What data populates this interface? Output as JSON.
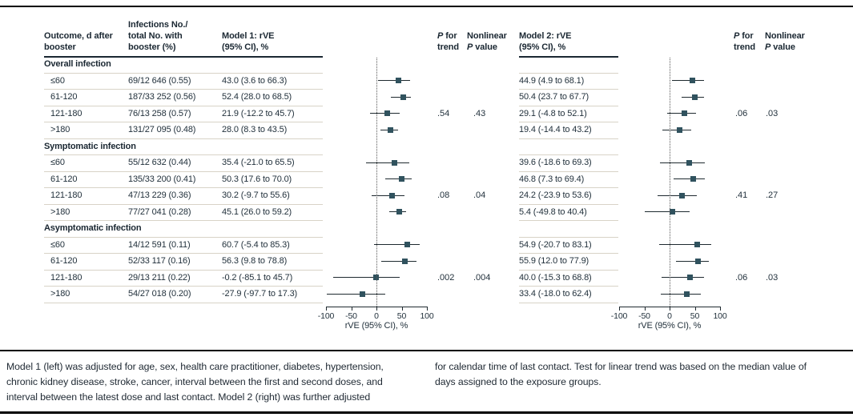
{
  "figure": {
    "header": {
      "col_outcome": [
        "Outcome, d after",
        "booster"
      ],
      "col_infections": [
        "Infections No./",
        "total No. with",
        "booster (%)"
      ],
      "col_model1": [
        "Model 1: rVE",
        "(95% CI), %"
      ],
      "col_model2": [
        "Model 2: rVE",
        "(95% CI), %"
      ],
      "p_trend": {
        "italic": "P",
        "rest": " for",
        "line2": "trend"
      },
      "nonlinear": {
        "line1": "Nonlinear",
        "italic": "P",
        "rest": " value"
      }
    },
    "axis": {
      "label": "rVE (95% CI), %",
      "min": -100,
      "max": 100,
      "ticks": [
        {
          "v": -100,
          "label": "-100"
        },
        {
          "v": -50,
          "label": "-50"
        },
        {
          "v": 0,
          "label": "0"
        },
        {
          "v": 50,
          "label": "50"
        },
        {
          "v": 100,
          "label": "100"
        }
      ]
    },
    "groups": [
      {
        "label": "Overall infection",
        "p1_trend": ".54",
        "p1_nonlinear": ".43",
        "p2_trend": ".06",
        "p2_nonlinear": ".03",
        "rows": [
          {
            "outcome": "≤60",
            "infections": "69/12 646 (0.55)",
            "m1_text": "43.0 (3.6 to 66.3)",
            "m1": [
              43.0,
              3.6,
              66.3
            ],
            "m2_text": "44.9 (4.9 to 68.1)",
            "m2": [
              44.9,
              4.9,
              68.1
            ]
          },
          {
            "outcome": "61-120",
            "infections": "187/33 252 (0.56)",
            "m1_text": "52.4 (28.0 to 68.5)",
            "m1": [
              52.4,
              28.0,
              68.5
            ],
            "m2_text": "50.4 (23.7 to 67.7)",
            "m2": [
              50.4,
              23.7,
              67.7
            ]
          },
          {
            "outcome": "121-180",
            "infections": "76/13 258 (0.57)",
            "m1_text": "21.9 (-12.2 to 45.7)",
            "m1": [
              21.9,
              -12.2,
              45.7
            ],
            "m2_text": "29.1 (-4.8 to 52.1)",
            "m2": [
              29.1,
              -4.8,
              52.1
            ]
          },
          {
            "outcome": ">180",
            "infections": "131/27 095 (0.48)",
            "m1_text": "28.0 (8.3 to 43.5)",
            "m1": [
              28.0,
              8.3,
              43.5
            ],
            "m2_text": "19.4 (-14.4 to 43.2)",
            "m2": [
              19.4,
              -14.4,
              43.2
            ]
          }
        ]
      },
      {
        "label": "Symptomatic infection",
        "p1_trend": ".08",
        "p1_nonlinear": ".04",
        "p2_trend": ".41",
        "p2_nonlinear": ".27",
        "rows": [
          {
            "outcome": "≤60",
            "infections": "55/12 632 (0.44)",
            "m1_text": "35.4 (-21.0 to 65.5)",
            "m1": [
              35.4,
              -21.0,
              65.5
            ],
            "m2_text": "39.6 (-18.6 to 69.3)",
            "m2": [
              39.6,
              -18.6,
              69.3
            ]
          },
          {
            "outcome": "61-120",
            "infections": "135/33 200 (0.41)",
            "m1_text": "50.3 (17.6 to 70.0)",
            "m1": [
              50.3,
              17.6,
              70.0
            ],
            "m2_text": "46.8 (7.3 to 69.4)",
            "m2": [
              46.8,
              7.3,
              69.4
            ]
          },
          {
            "outcome": "121-180",
            "infections": "47/13 229 (0.36)",
            "m1_text": "30.2 (-9.7 to 55.6)",
            "m1": [
              30.2,
              -9.7,
              55.6
            ],
            "m2_text": "24.2 (-23.9 to 53.6)",
            "m2": [
              24.2,
              -23.9,
              53.6
            ]
          },
          {
            "outcome": ">180",
            "infections": "77/27 041 (0.28)",
            "m1_text": "45.1 (26.0 to 59.2)",
            "m1": [
              45.1,
              26.0,
              59.2
            ],
            "m2_text": "5.4 (-49.8 to 40.4)",
            "m2": [
              5.4,
              -49.8,
              40.4
            ]
          }
        ]
      },
      {
        "label": "Asymptomatic infection",
        "p1_trend": ".002",
        "p1_nonlinear": ".004",
        "p2_trend": ".06",
        "p2_nonlinear": ".03",
        "rows": [
          {
            "outcome": "≤60",
            "infections": "14/12 591 (0.11)",
            "m1_text": "60.7 (-5.4 to 85.3)",
            "m1": [
              60.7,
              -5.4,
              85.3
            ],
            "m2_text": "54.9 (-20.7 to 83.1)",
            "m2": [
              54.9,
              -20.7,
              83.1
            ]
          },
          {
            "outcome": "61-120",
            "infections": "52/33 117 (0.16)",
            "m1_text": "56.3 (9.8 to 78.8)",
            "m1": [
              56.3,
              9.8,
              78.8
            ],
            "m2_text": "55.9 (12.0 to 77.9)",
            "m2": [
              55.9,
              12.0,
              77.9
            ]
          },
          {
            "outcome": "121-180",
            "infections": "29/13 211 (0.22)",
            "m1_text": "-0.2 (-85.1 to 45.7)",
            "m1": [
              -0.2,
              -85.1,
              45.7
            ],
            "m2_text": "40.0 (-15.3 to 68.8)",
            "m2": [
              40.0,
              -15.3,
              68.8
            ]
          },
          {
            "outcome": ">180",
            "infections": "54/27 018 (0.20)",
            "m1_text": "-27.9 (-97.7 to 17.3)",
            "m1": [
              -27.9,
              -97.7,
              17.3
            ],
            "m2_text": "33.4 (-18.0 to 62.4)",
            "m2": [
              33.4,
              -18.0,
              62.4
            ]
          }
        ]
      }
    ],
    "footnotes": {
      "left": [
        "Model 1 (left) was adjusted for age, sex, health care practitioner, diabetes, hypertension,",
        "chronic kidney disease, stroke, cancer, interval between the first and second doses, and",
        "interval between the latest dose and last contact. Model 2 (right) was further adjusted"
      ],
      "right": [
        "for calendar time of last contact. Test for linear trend was based on the median value of",
        "days assigned to the exposure groups."
      ]
    },
    "colors": {
      "marker": "#30525e",
      "ci_line": "#1f2a30",
      "row_separator": "#d8d3c7",
      "rule": "#000000"
    }
  },
  "chart_data": [
    {
      "type": "scatter",
      "subtype": "forest-plot",
      "title": "Model 1: rVE (95% CI), %",
      "xlabel": "rVE (95% CI), %",
      "xlim": [
        -100,
        100
      ],
      "x_ticks": [
        -100,
        -50,
        0,
        50,
        100
      ],
      "reference_line_x": 0,
      "categories": [
        "Overall ≤60",
        "Overall 61-120",
        "Overall 121-180",
        "Overall >180",
        "Symptomatic ≤60",
        "Symptomatic 61-120",
        "Symptomatic 121-180",
        "Symptomatic >180",
        "Asymptomatic ≤60",
        "Asymptomatic 61-120",
        "Asymptomatic 121-180",
        "Asymptomatic >180"
      ],
      "estimates": [
        43.0,
        52.4,
        21.9,
        28.0,
        35.4,
        50.3,
        30.2,
        45.1,
        60.7,
        56.3,
        -0.2,
        -27.9
      ],
      "ci_low": [
        3.6,
        28.0,
        -12.2,
        8.3,
        -21.0,
        17.6,
        -9.7,
        26.0,
        -5.4,
        9.8,
        -85.1,
        -97.7
      ],
      "ci_high": [
        66.3,
        68.5,
        45.7,
        43.5,
        65.5,
        70.0,
        55.6,
        59.2,
        85.3,
        78.8,
        45.7,
        17.3
      ],
      "p_for_trend": [
        ".54",
        ".08",
        ".002"
      ],
      "nonlinear_p": [
        ".43",
        ".04",
        ".004"
      ]
    },
    {
      "type": "scatter",
      "subtype": "forest-plot",
      "title": "Model 2: rVE (95% CI), %",
      "xlabel": "rVE (95% CI), %",
      "xlim": [
        -100,
        100
      ],
      "x_ticks": [
        -100,
        -50,
        0,
        50,
        100
      ],
      "reference_line_x": 0,
      "categories": [
        "Overall ≤60",
        "Overall 61-120",
        "Overall 121-180",
        "Overall >180",
        "Symptomatic ≤60",
        "Symptomatic 61-120",
        "Symptomatic 121-180",
        "Symptomatic >180",
        "Asymptomatic ≤60",
        "Asymptomatic 61-120",
        "Asymptomatic 121-180",
        "Asymptomatic >180"
      ],
      "estimates": [
        44.9,
        50.4,
        29.1,
        19.4,
        39.6,
        46.8,
        24.2,
        5.4,
        54.9,
        55.9,
        40.0,
        33.4
      ],
      "ci_low": [
        4.9,
        23.7,
        -4.8,
        -14.4,
        -18.6,
        7.3,
        -23.9,
        -49.8,
        -20.7,
        12.0,
        -15.3,
        -18.0
      ],
      "ci_high": [
        68.1,
        67.7,
        52.1,
        43.2,
        69.3,
        69.4,
        53.6,
        40.4,
        83.1,
        77.9,
        68.8,
        62.4
      ],
      "p_for_trend": [
        ".06",
        ".41",
        ".06"
      ],
      "nonlinear_p": [
        ".03",
        ".27",
        ".03"
      ]
    }
  ]
}
